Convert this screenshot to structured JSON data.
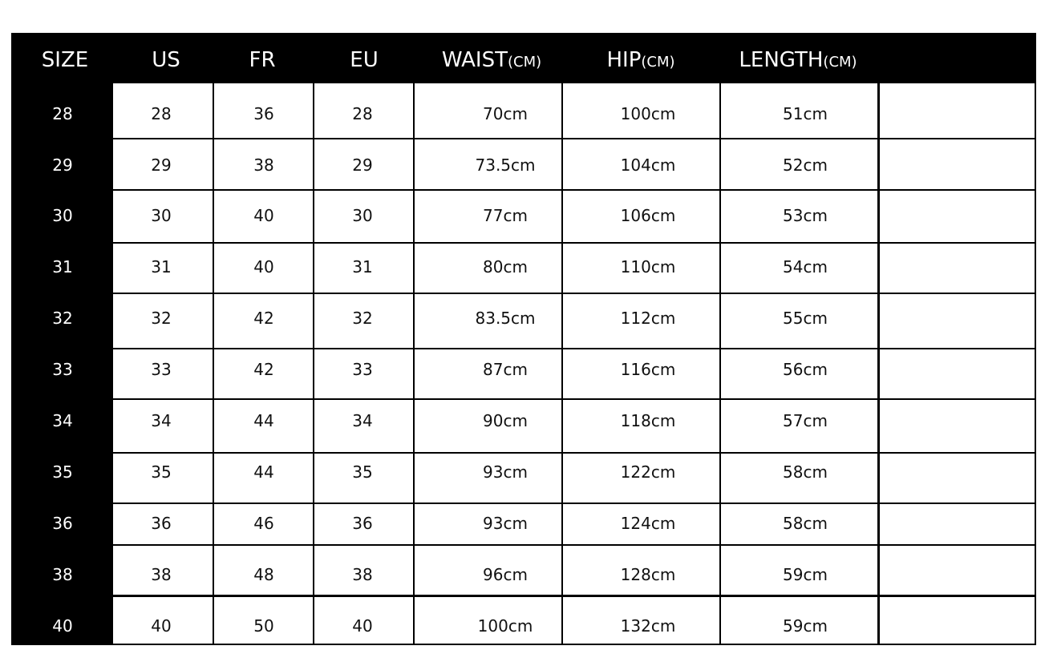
{
  "table": {
    "headers": [
      {
        "label": "SIZE",
        "unit": ""
      },
      {
        "label": "US",
        "unit": ""
      },
      {
        "label": "FR",
        "unit": ""
      },
      {
        "label": "EU",
        "unit": ""
      },
      {
        "label": "WAIST",
        "unit": "(CM)"
      },
      {
        "label": "HIP",
        "unit": "(CM)"
      },
      {
        "label": "LENGTH",
        "unit": "(CM)"
      },
      {
        "label": "",
        "unit": ""
      }
    ],
    "rows": [
      [
        "28",
        "28",
        "36",
        "28",
        "70cm",
        "100cm",
        "51cm",
        ""
      ],
      [
        "29",
        "29",
        "38",
        "29",
        "73.5cm",
        "104cm",
        "52cm",
        ""
      ],
      [
        "30",
        "30",
        "40",
        "30",
        "77cm",
        "106cm",
        "53cm",
        ""
      ],
      [
        "31",
        "31",
        "40",
        "31",
        "80cm",
        "110cm",
        "54cm",
        ""
      ],
      [
        "32",
        "32",
        "42",
        "32",
        "83.5cm",
        "112cm",
        "55cm",
        ""
      ],
      [
        "33",
        "33",
        "42",
        "33",
        "87cm",
        "116cm",
        "56cm",
        ""
      ],
      [
        "34",
        "34",
        "44",
        "34",
        "90cm",
        "118cm",
        "57cm",
        ""
      ],
      [
        "35",
        "35",
        "44",
        "35",
        "93cm",
        "122cm",
        "58cm",
        ""
      ],
      [
        "36",
        "36",
        "46",
        "36",
        "93cm",
        "124cm",
        "58cm",
        ""
      ],
      [
        "38",
        "38",
        "48",
        "38",
        "96cm",
        "128cm",
        "59cm",
        ""
      ],
      [
        "40",
        "40",
        "50",
        "40",
        "100cm",
        "132cm",
        "59cm",
        ""
      ]
    ],
    "colors": {
      "header_bg": "#000000",
      "header_text": "#ffffff",
      "cell_text": "#111111",
      "grid": "#000000"
    }
  }
}
